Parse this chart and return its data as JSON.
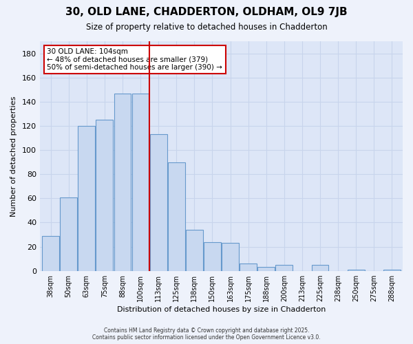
{
  "title": "30, OLD LANE, CHADDERTON, OLDHAM, OL9 7JB",
  "subtitle": "Size of property relative to detached houses in Chadderton",
  "xlabel": "Distribution of detached houses by size in Chadderton",
  "ylabel": "Number of detached properties",
  "bar_labels": [
    "38sqm",
    "50sqm",
    "63sqm",
    "75sqm",
    "88sqm",
    "100sqm",
    "113sqm",
    "125sqm",
    "138sqm",
    "150sqm",
    "163sqm",
    "175sqm",
    "188sqm",
    "200sqm",
    "213sqm",
    "225sqm",
    "238sqm",
    "250sqm",
    "275sqm",
    "288sqm"
  ],
  "bar_values": [
    29,
    61,
    120,
    125,
    147,
    147,
    113,
    90,
    34,
    24,
    23,
    6,
    3,
    5,
    0,
    5,
    0,
    1,
    0,
    1
  ],
  "bar_color": "#c8d8f0",
  "bar_edge_color": "#6699cc",
  "ylim": [
    0,
    190
  ],
  "yticks": [
    0,
    20,
    40,
    60,
    80,
    100,
    120,
    140,
    160,
    180
  ],
  "vline_x": 5.5,
  "vline_color": "#cc0000",
  "annotation_title": "30 OLD LANE: 104sqm",
  "annotation_line1": "← 48% of detached houses are smaller (379)",
  "annotation_line2": "50% of semi-detached houses are larger (390) →",
  "footer1": "Contains HM Land Registry data © Crown copyright and database right 2025.",
  "footer2": "Contains public sector information licensed under the Open Government Licence v3.0.",
  "background_color": "#eef2fb",
  "plot_background": "#dde6f7",
  "grid_color": "#c8d4ec"
}
